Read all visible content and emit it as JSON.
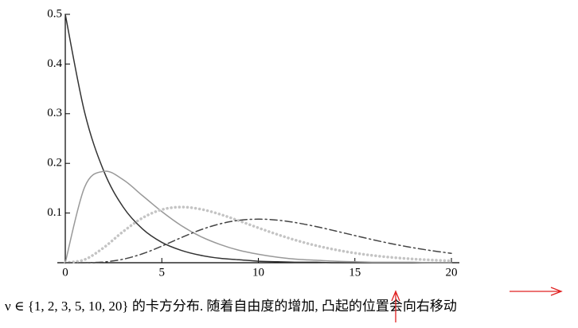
{
  "chart_data": {
    "type": "line",
    "caption": "ν ∈ {1, 2, 3, 5, 10, 20} 的卡方分布. 随着自由度的增加, 凸起的位置会向右移动",
    "x": [
      0,
      1,
      2,
      3,
      4,
      5,
      6,
      7,
      8,
      9,
      10,
      11,
      12,
      13,
      14,
      15,
      16,
      17,
      18,
      19,
      20
    ],
    "series": [
      {
        "color": "#333333",
        "style": "solid",
        "values": [
          0.5,
          0.303,
          0.184,
          0.112,
          0.068,
          0.041,
          0.025,
          0.015,
          0.009,
          0.006,
          0.003,
          0.002,
          0.001,
          0.001,
          0,
          0,
          0,
          0,
          0,
          0,
          0
        ]
      },
      {
        "color": "#999999",
        "style": "solid",
        "values": [
          0,
          0.152,
          0.184,
          0.167,
          0.135,
          0.103,
          0.075,
          0.053,
          0.037,
          0.025,
          0.017,
          0.011,
          0.007,
          0.005,
          0.003,
          0.002,
          0.001,
          0.001,
          0.001,
          0,
          0
        ]
      },
      {
        "color": "#c4c4c4",
        "style": "dotted",
        "values": [
          0,
          0.0063,
          0.0307,
          0.0628,
          0.0902,
          0.1069,
          0.112,
          0.1079,
          0.0977,
          0.0844,
          0.0702,
          0.0567,
          0.0446,
          0.0344,
          0.0261,
          0.0194,
          0.0143,
          0.0104,
          0.0075,
          0.0054,
          0.0038
        ]
      },
      {
        "color": "#444444",
        "style": "dashdot",
        "values": [
          0,
          0.0001,
          0.0015,
          0.0071,
          0.018,
          0.0334,
          0.0504,
          0.0661,
          0.0781,
          0.0854,
          0.0877,
          0.0857,
          0.0803,
          0.0727,
          0.0639,
          0.0547,
          0.0457,
          0.0375,
          0.0303,
          0.0241,
          0.0189
        ]
      }
    ],
    "xlim": [
      0,
      20
    ],
    "ylim": [
      0,
      0.5
    ],
    "xticks": [
      0,
      5,
      10,
      15,
      20
    ],
    "yticks": [
      0.1,
      0.2,
      0.3,
      0.4,
      0.5
    ]
  }
}
